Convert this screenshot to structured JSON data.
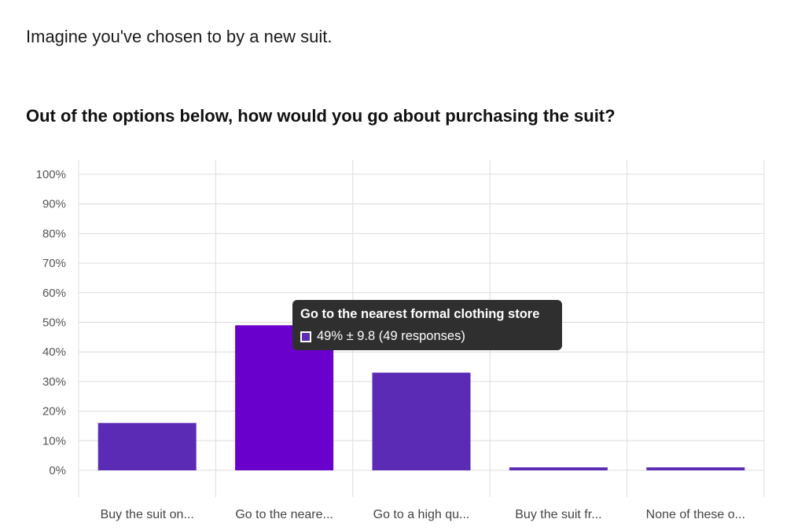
{
  "intro_text": "Imagine you've chosen to by a new suit.",
  "question_text": "Out of the options below, how would you go about purchasing the suit?",
  "colors": {
    "bar": "#5c2bb5",
    "bar_highlight": "#6a00cc",
    "grid": "#dcdcdc",
    "tooltip_bg": "#2f2f2f"
  },
  "chart_data": {
    "type": "bar",
    "categories": [
      "Buy the suit on...",
      "Go to the neare...",
      "Go to a high qu...",
      "Buy the suit fr...",
      "None of these o..."
    ],
    "values": [
      16,
      49,
      33,
      1,
      1
    ],
    "ylim": [
      0,
      100
    ],
    "yticks": [
      "0%",
      "10%",
      "20%",
      "30%",
      "40%",
      "50%",
      "60%",
      "70%",
      "80%",
      "90%",
      "100%"
    ],
    "highlighted_index": 1,
    "grid": true
  },
  "tooltip": {
    "title": "Go to the nearest formal clothing store",
    "value_text": "49% ± 9.8 (49 responses)"
  }
}
